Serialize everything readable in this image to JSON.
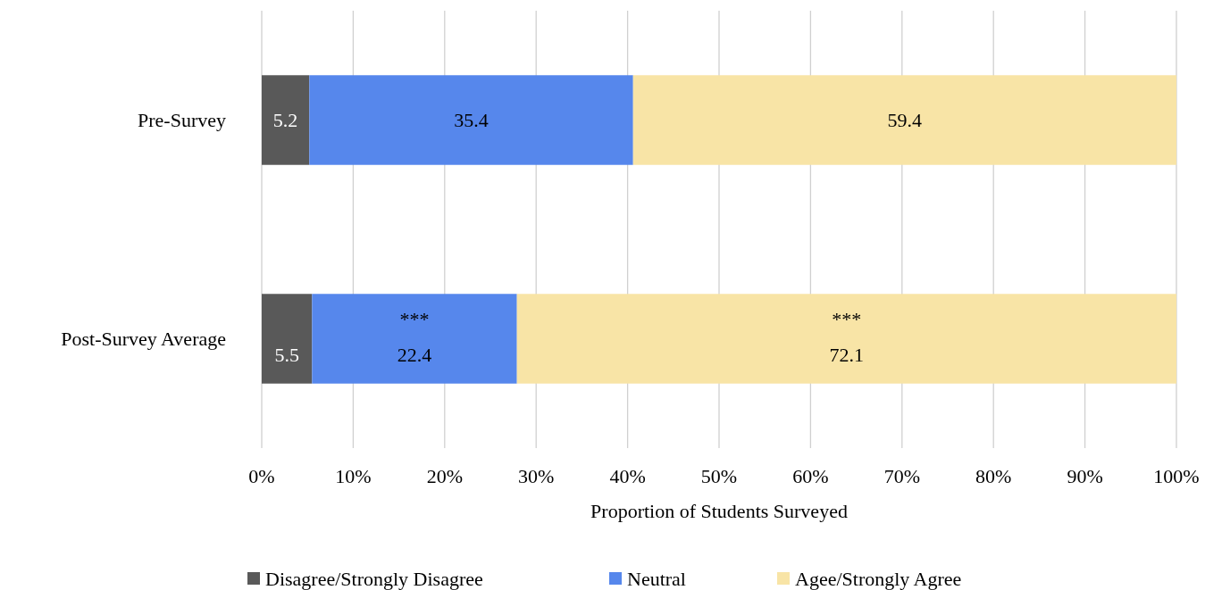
{
  "chart_data": {
    "type": "bar",
    "orientation": "horizontal",
    "stacked": true,
    "xlabel": "Proportion of Students Surveyed",
    "categories": [
      "Pre-Survey",
      "Post-Survey Average"
    ],
    "series": [
      {
        "name": "Disagree/Strongly Disagree",
        "color": "#595959",
        "values": [
          5.2,
          5.5
        ]
      },
      {
        "name": "Neutral",
        "color": "#5687ec",
        "values": [
          35.4,
          22.4
        ]
      },
      {
        "name": "Agee/Strongly Agree",
        "color": "#f8e4a6",
        "values": [
          59.4,
          72.1
        ]
      }
    ],
    "xlim": [
      0,
      100
    ],
    "xticks": [
      {
        "value": 0,
        "label": "0%"
      },
      {
        "value": 10,
        "label": "10%"
      },
      {
        "value": 20,
        "label": "20%"
      },
      {
        "value": 30,
        "label": "30%"
      },
      {
        "value": 40,
        "label": "40%"
      },
      {
        "value": 50,
        "label": "50%"
      },
      {
        "value": 60,
        "label": "60%"
      },
      {
        "value": 70,
        "label": "70%"
      },
      {
        "value": 80,
        "label": "80%"
      },
      {
        "value": 90,
        "label": "90%"
      },
      {
        "value": 100,
        "label": "100%"
      }
    ],
    "data_labels": true,
    "grid": "x",
    "legend": "bottom",
    "annotations": [
      "***",
      "***"
    ]
  }
}
